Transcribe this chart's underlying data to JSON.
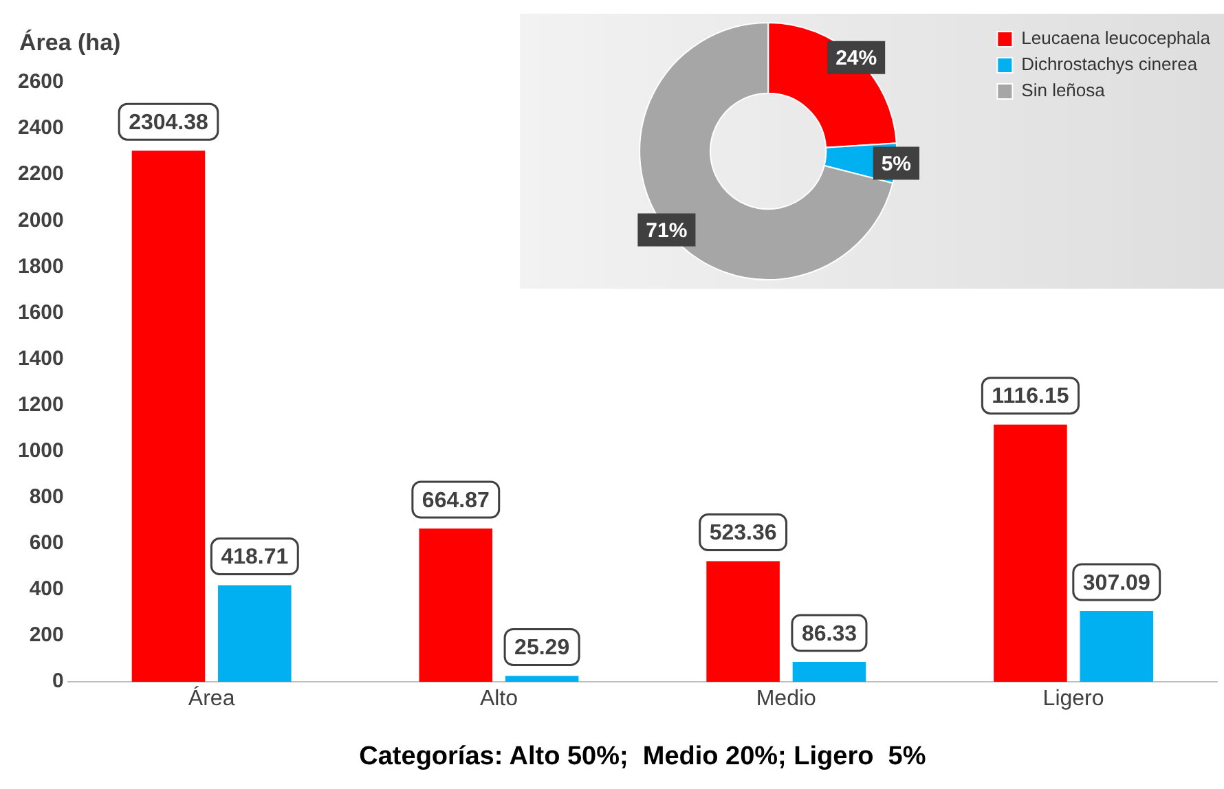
{
  "chart_data": [
    {
      "type": "bar",
      "ylabel": "Área (ha)",
      "xlabel": "Categorías: Alto 50%;  Medio 20%; Ligero  5%",
      "categories": [
        "Área",
        "Alto",
        "Medio",
        "Ligero"
      ],
      "series": [
        {
          "color": "#ff0000",
          "values": [
            2304.38,
            664.87,
            523.36,
            1116.15
          ]
        },
        {
          "color": "#00b0f0",
          "values": [
            418.71,
            25.29,
            86.33,
            307.09
          ]
        }
      ],
      "ylim": [
        0,
        2600
      ],
      "yticks": [
        0,
        200,
        400,
        600,
        800,
        1000,
        1200,
        1400,
        1600,
        1800,
        2000,
        2200,
        2400,
        2600
      ],
      "grid": false,
      "legend": false,
      "data_labels": true
    },
    {
      "type": "donut",
      "categories": [
        "Leucaena leucocephala",
        "Dichrostachys cinerea",
        "Sin leñosa"
      ],
      "values": [
        24,
        5,
        71
      ],
      "colors": [
        "#ff0000",
        "#00b0f0",
        "#a6a6a6"
      ],
      "value_labels": [
        "24%",
        "5%",
        "71%"
      ],
      "legend": "right"
    }
  ]
}
